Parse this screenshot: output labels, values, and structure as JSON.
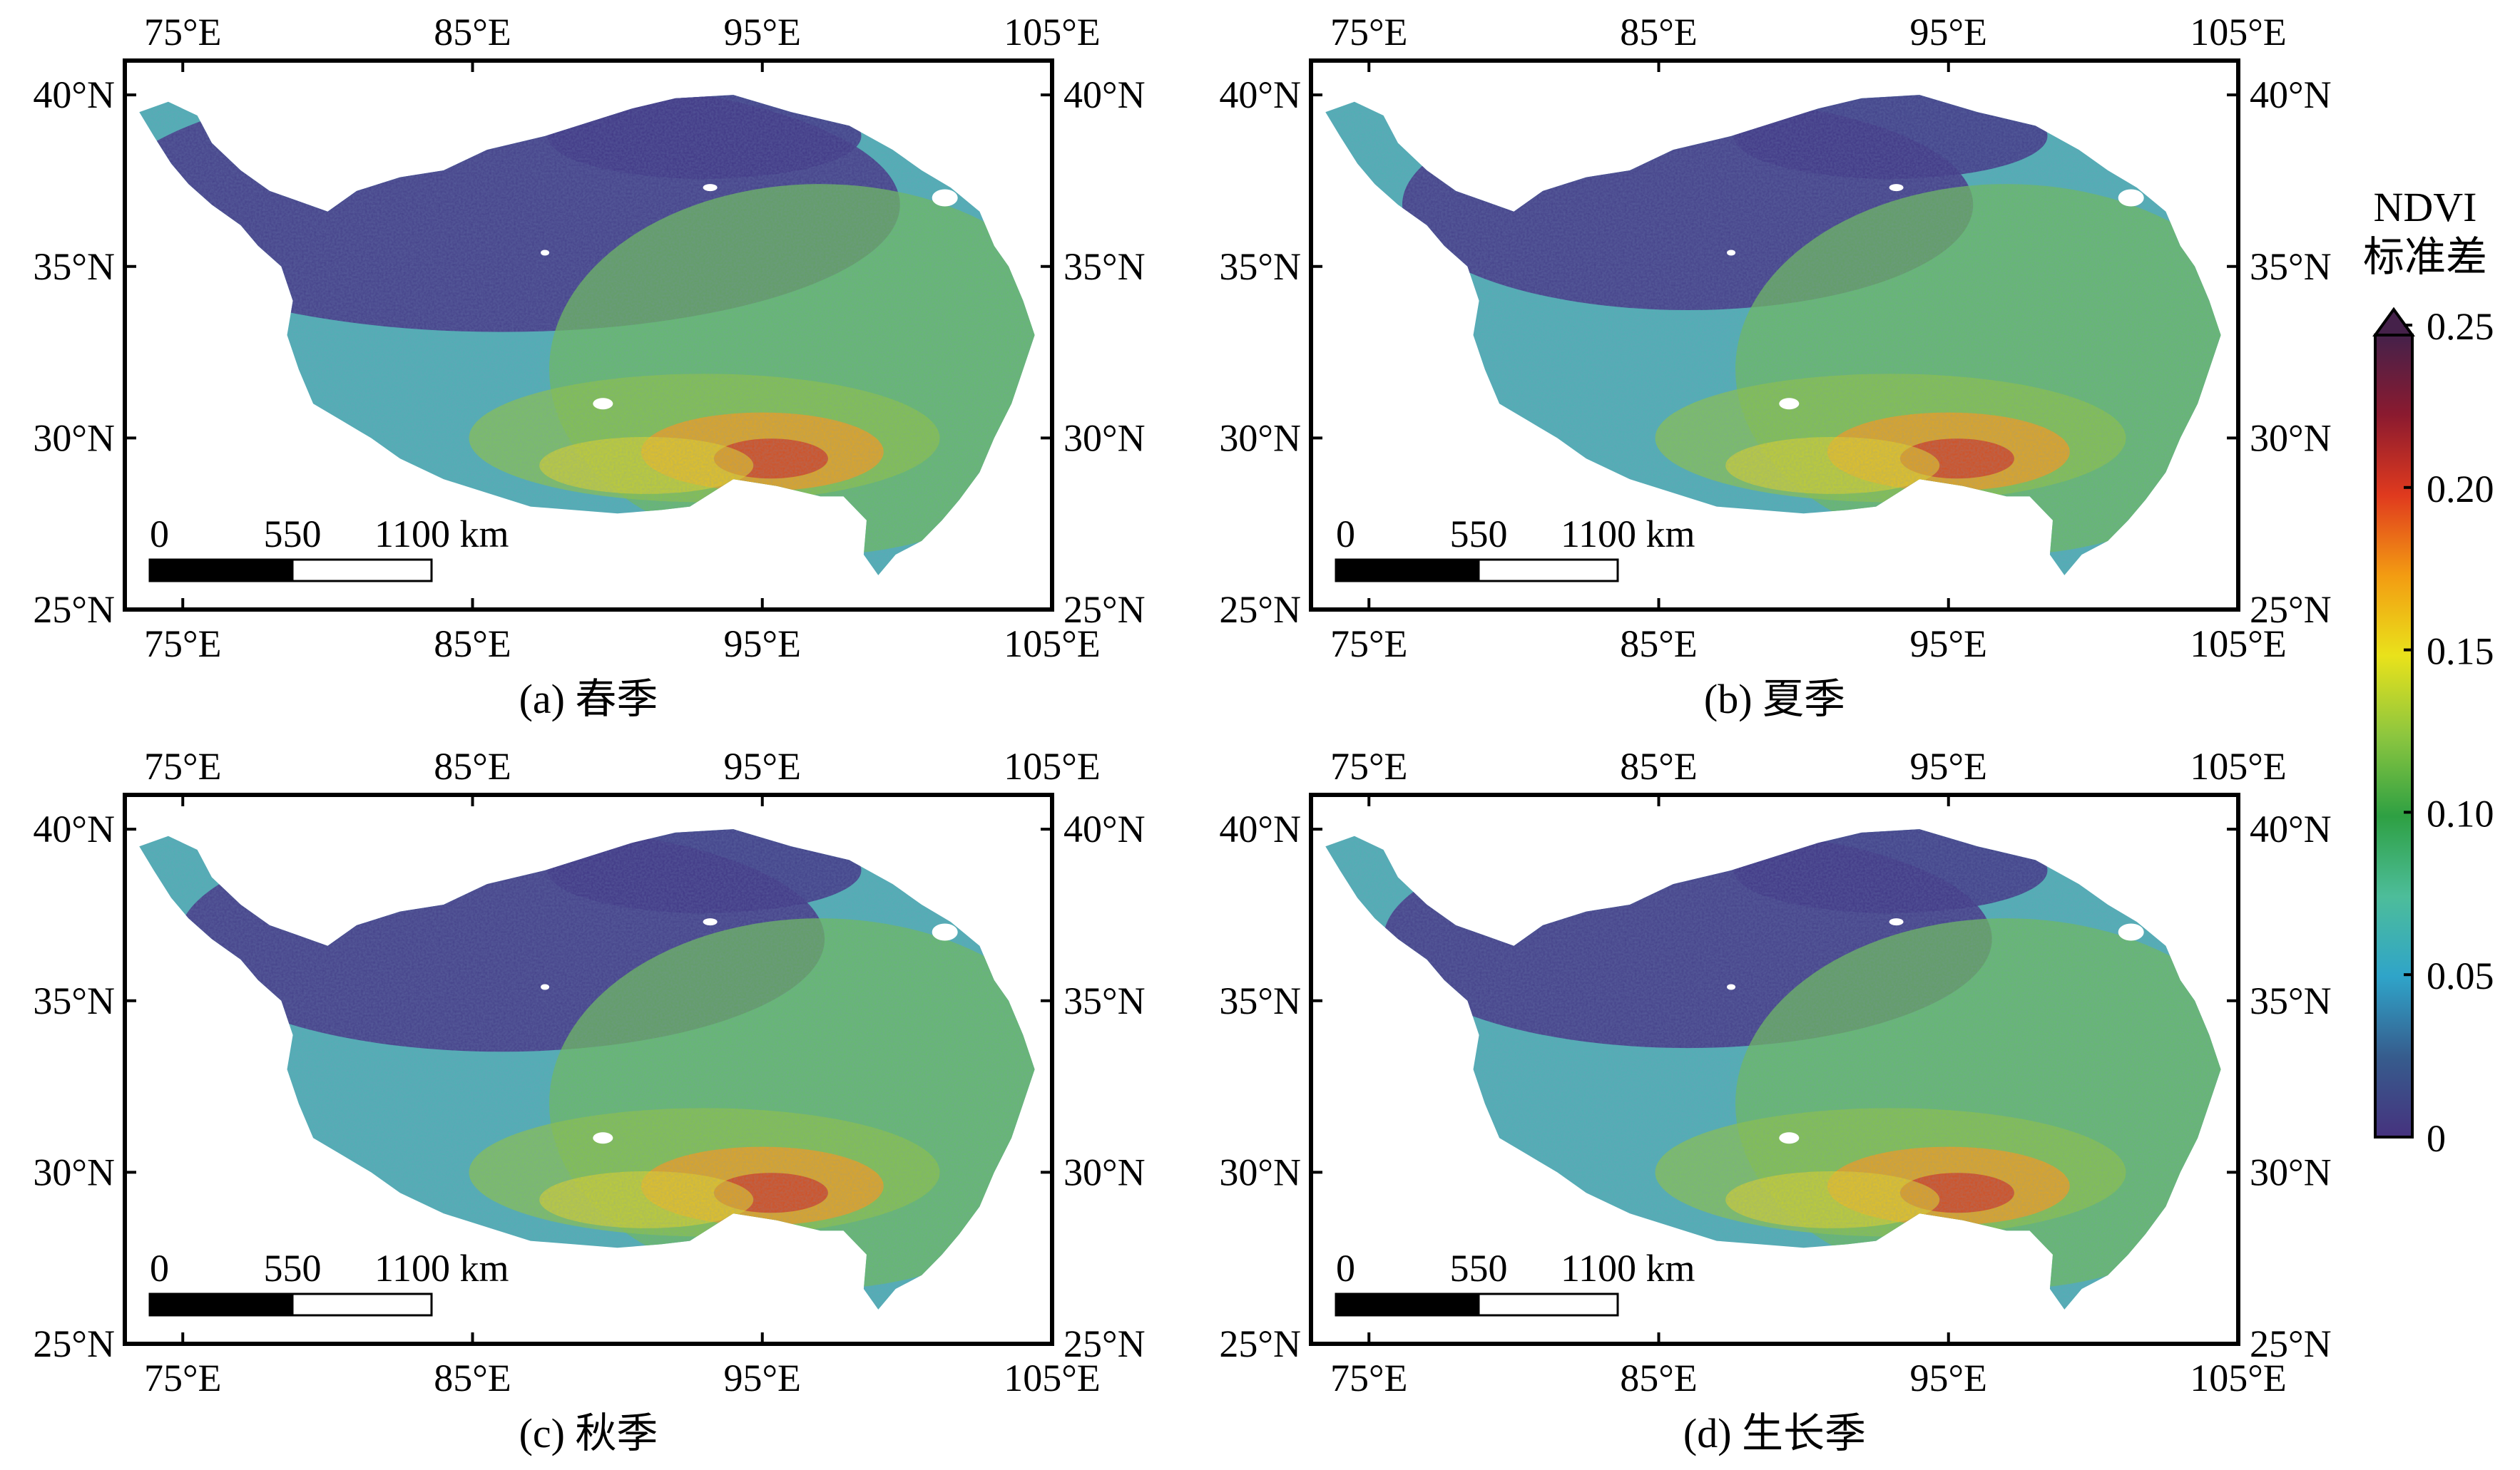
{
  "panels": [
    {
      "id": "a",
      "caption": "(a) 春季",
      "tone": 0
    },
    {
      "id": "b",
      "caption": "(b) 夏季",
      "tone": 1
    },
    {
      "id": "c",
      "caption": "(c) 秋季",
      "tone": 2
    },
    {
      "id": "d",
      "caption": "(d) 生长季",
      "tone": 3
    }
  ],
  "lon_ticks": [
    "75°E",
    "85°E",
    "95°E",
    "105°E"
  ],
  "lat_ticks": [
    "40°N",
    "35°N",
    "30°N",
    "25°N"
  ],
  "scale_bar": {
    "labels": [
      "0",
      "550",
      "1100 km"
    ]
  },
  "colorbar": {
    "title_line1": "NDVI",
    "title_line2": "标准差",
    "ticks": [
      "0.25",
      "0.20",
      "0.15",
      "0.10",
      "0.05",
      "0"
    ],
    "colors": [
      "#46327e",
      "#365c8d",
      "#2fa4c9",
      "#4dbd9a",
      "#2ea043",
      "#8cc63f",
      "#e9e21b",
      "#f39c12",
      "#e03a1e",
      "#8b1a2f",
      "#45214a"
    ]
  },
  "chart_data": {
    "type": "heatmap",
    "variable": "NDVI 标准差",
    "value_range": [
      0,
      0.25
    ],
    "x_range_lon": [
      73,
      105
    ],
    "y_range_lat": [
      25,
      41
    ],
    "panels": [
      "(a) 春季",
      "(b) 夏季",
      "(c) 秋季",
      "(d) 生长季"
    ]
  }
}
